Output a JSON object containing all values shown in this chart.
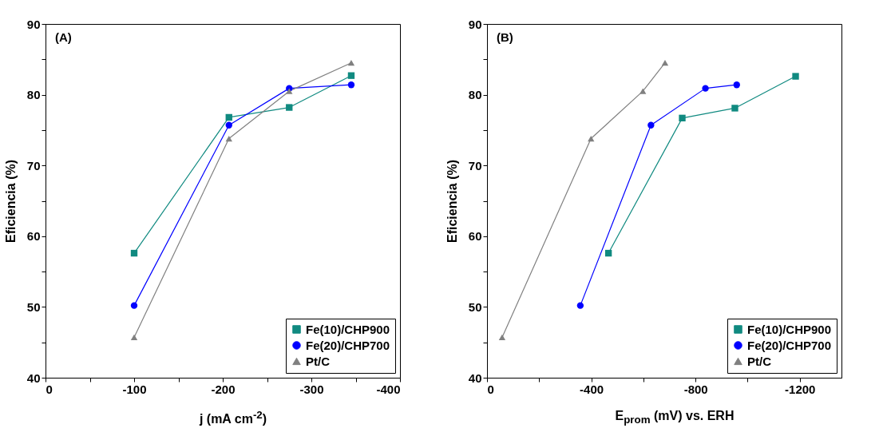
{
  "chart_data": [
    {
      "type": "line",
      "annotations": [
        "(A)"
      ],
      "xlabel": "j (mA cm$^{-2}$)",
      "ylabel": "Eficiencia (%)",
      "xlim": [
        0,
        -400
      ],
      "xticks": [
        0,
        {
          "value": -50,
          "label": null
        },
        -100,
        {
          "value": -150,
          "label": null
        },
        -200,
        {
          "value": -250,
          "label": null
        },
        -300,
        {
          "value": -350,
          "label": null
        },
        -400
      ],
      "ylim": [
        40,
        90
      ],
      "yticks": [
        40,
        {
          "value": 45,
          "label": null
        },
        50,
        {
          "value": 55,
          "label": null
        },
        60,
        {
          "value": 65,
          "label": null
        },
        70,
        {
          "value": 75,
          "label": null
        },
        80,
        {
          "value": 85,
          "label": null
        },
        90
      ],
      "grid": false,
      "legend": "bottom right",
      "series": [
        {
          "name": "Fe(10)/CHP900",
          "color": "#108a80",
          "marker": "square",
          "x": [
            -100,
            -207,
            -275,
            -345
          ],
          "values": [
            57.6,
            76.8,
            78.2,
            82.7
          ]
        },
        {
          "name": "Fe(20)/CHP700",
          "color": "#0000ff",
          "marker": "circle",
          "x": [
            -100,
            -207,
            -275,
            -345
          ],
          "values": [
            50.2,
            75.7,
            80.9,
            81.4
          ]
        },
        {
          "name": "Pt/C",
          "color": "#808080",
          "marker": "triangle",
          "x": [
            -100,
            -207,
            -275,
            -345
          ],
          "values": [
            45.7,
            73.8,
            80.5,
            84.5
          ]
        }
      ]
    },
    {
      "type": "line",
      "annotations": [
        "(B)"
      ],
      "xlabel": "E$_{prom}$ (mV) vs. ERH",
      "ylabel": "Eficiencia (%)",
      "xlim": [
        0,
        -1360
      ],
      "xticks": [
        0,
        {
          "value": -200,
          "label": null
        },
        -400,
        {
          "value": -600,
          "label": null
        },
        -800,
        {
          "value": -1000,
          "label": null
        },
        -1200
      ],
      "ylim": [
        40,
        90
      ],
      "yticks": [
        40,
        {
          "value": 45,
          "label": null
        },
        50,
        {
          "value": 55,
          "label": null
        },
        60,
        {
          "value": 65,
          "label": null
        },
        70,
        {
          "value": 75,
          "label": null
        },
        80,
        {
          "value": 85,
          "label": null
        },
        90
      ],
      "grid": false,
      "legend": "bottom right",
      "series": [
        {
          "name": "Fe(10)/CHP900",
          "color": "#108a80",
          "marker": "square",
          "x": [
            -466,
            -749,
            -951,
            -1184
          ],
          "values": [
            57.6,
            76.7,
            78.1,
            82.6
          ]
        },
        {
          "name": "Fe(20)/CHP700",
          "color": "#0000ff",
          "marker": "circle",
          "x": [
            -358,
            -629,
            -838,
            -958
          ],
          "values": [
            50.2,
            75.7,
            80.9,
            81.4
          ]
        },
        {
          "name": "Pt/C",
          "color": "#808080",
          "marker": "triangle",
          "x": [
            -58,
            -399,
            -598,
            -683
          ],
          "values": [
            45.7,
            73.8,
            80.5,
            84.5
          ]
        }
      ]
    }
  ]
}
